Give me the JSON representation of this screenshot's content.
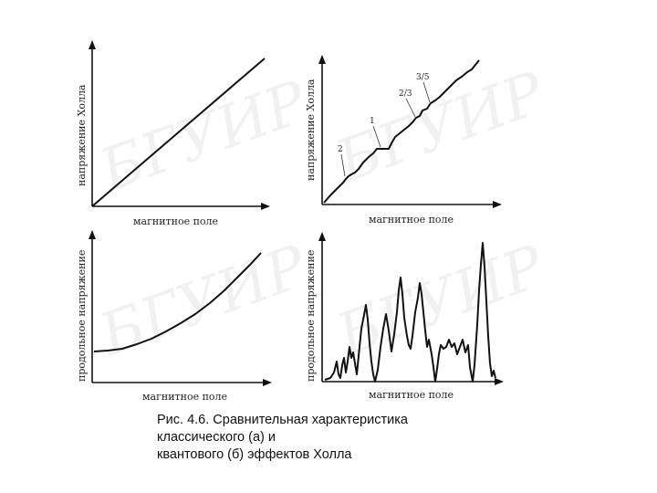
{
  "panels": {
    "top_left": {
      "ylabel": "напряжение Холла",
      "xlabel": "магнитное поле"
    },
    "top_right": {
      "ylabel": "напряжение Холла",
      "xlabel": "магнитное поле",
      "annotations": [
        "2",
        "1",
        "2/3",
        "3/5"
      ]
    },
    "bottom_left": {
      "ylabel": "продольное напряжение",
      "xlabel": "магнитное поле"
    },
    "bottom_right": {
      "ylabel": "продольное напряжение",
      "xlabel": "магнитное поле"
    }
  },
  "watermarks": [
    "БГУИР",
    "БГУИР",
    "БГУИР",
    "БГУИР"
  ],
  "caption": {
    "line1": "Рис. 4.6. Сравнительная характеристика",
    "line2": "классического (а) и",
    "line3": "квантового (б) эффектов Холла"
  }
}
